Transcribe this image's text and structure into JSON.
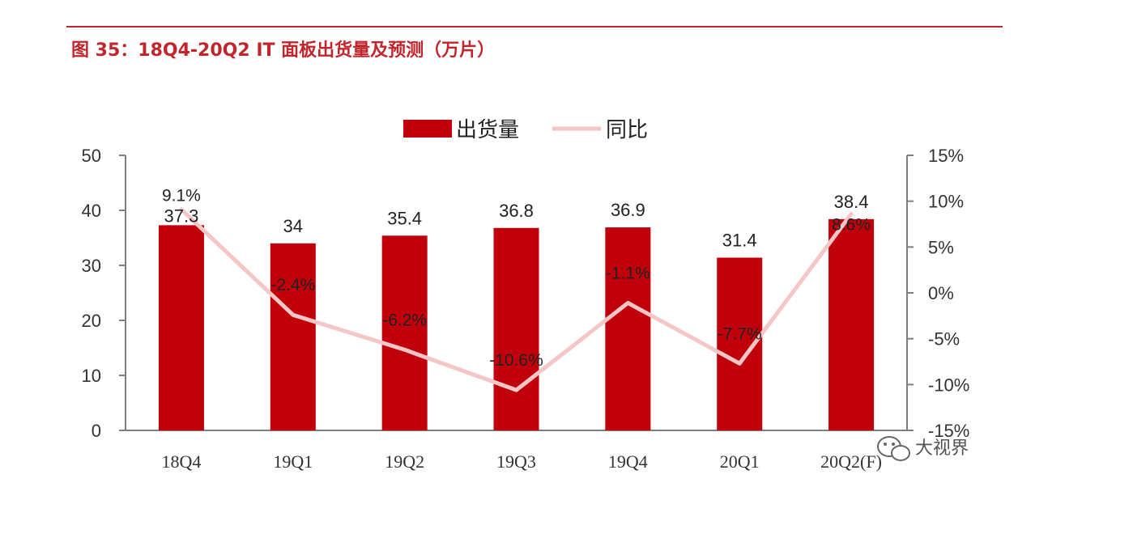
{
  "header": {
    "title": "图 35：18Q4-20Q2 IT 面板出货量及预测（万片）"
  },
  "watermark": {
    "text": "大视界",
    "icon": "wechat-icon"
  },
  "colors": {
    "bar": "#c0000a",
    "line": "#f4c6c6",
    "title": "#c0262c",
    "axis": "#7f7f7f"
  },
  "chart_data": {
    "type": "bar",
    "categories": [
      "18Q4",
      "19Q1",
      "19Q2",
      "19Q3",
      "19Q4",
      "20Q1",
      "20Q2(F)"
    ],
    "series": [
      {
        "name": "出货量",
        "type": "bar",
        "axis": "left",
        "values": [
          37.3,
          34,
          35.4,
          36.8,
          36.9,
          31.4,
          38.4
        ],
        "labels": [
          "37.3",
          "34",
          "35.4",
          "36.8",
          "36.9",
          "31.4",
          "38.4"
        ]
      },
      {
        "name": "同比",
        "type": "line",
        "axis": "right",
        "values": [
          9.1,
          -2.4,
          -6.2,
          -10.6,
          -1.1,
          -7.7,
          8.6
        ],
        "labels": [
          "9.1%",
          "-2.4%",
          "-6.2%",
          "-10.6%",
          "-1.1%",
          "-7.7%",
          "8.6%"
        ]
      }
    ],
    "y_left": {
      "ylim": [
        0,
        50
      ],
      "ticks": [
        "0",
        "10",
        "20",
        "30",
        "40",
        "50"
      ]
    },
    "y_right": {
      "ylim": [
        -15,
        15
      ],
      "ticks": [
        "-15%",
        "-10%",
        "-5%",
        "0%",
        "5%",
        "10%",
        "15%"
      ]
    },
    "legend": {
      "position": "top-center",
      "items": [
        "出货量",
        "同比"
      ]
    },
    "grid": false
  }
}
